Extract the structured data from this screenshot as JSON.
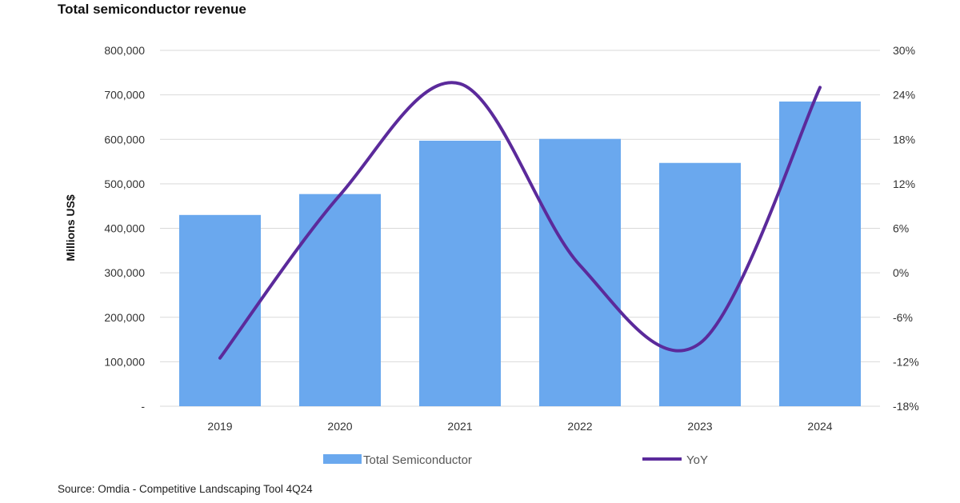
{
  "chart_data": {
    "type": "bar",
    "title": "Total semiconductor revenue",
    "categories": [
      "2019",
      "2020",
      "2021",
      "2022",
      "2023",
      "2024"
    ],
    "series": [
      {
        "name": "Total Semiconductor",
        "type": "bar",
        "axis": "left",
        "values": [
          430000,
          477000,
          597000,
          601000,
          547000,
          685000
        ]
      },
      {
        "name": "YoY",
        "type": "line",
        "axis": "right",
        "values": [
          -11.5,
          10.5,
          25.5,
          1.0,
          -9.5,
          25.0
        ]
      }
    ],
    "xlabel": "",
    "ylabel": "Millions US$",
    "ylim": [
      0,
      800000
    ],
    "y_ticks": [
      {
        "value": 0,
        "label": "-"
      },
      {
        "value": 100000,
        "label": "100,000"
      },
      {
        "value": 200000,
        "label": "200,000"
      },
      {
        "value": 300000,
        "label": "300,000"
      },
      {
        "value": 400000,
        "label": "400,000"
      },
      {
        "value": 500000,
        "label": "500,000"
      },
      {
        "value": 600000,
        "label": "600,000"
      },
      {
        "value": 700000,
        "label": "700,000"
      },
      {
        "value": 800000,
        "label": "800,000"
      }
    ],
    "y2lim": [
      -18,
      30
    ],
    "y2_ticks": [
      {
        "value": -18,
        "label": "-18%"
      },
      {
        "value": -12,
        "label": "-12%"
      },
      {
        "value": -6,
        "label": "-6%"
      },
      {
        "value": 0,
        "label": "0%"
      },
      {
        "value": 6,
        "label": "6%"
      },
      {
        "value": 12,
        "label": "12%"
      },
      {
        "value": 18,
        "label": "18%"
      },
      {
        "value": 24,
        "label": "24%"
      },
      {
        "value": 30,
        "label": "30%"
      }
    ],
    "grid": true,
    "legend": "bottom",
    "source": "Source: Omdia - Competitive Landscaping Tool 4Q24",
    "colors": {
      "bar": "#6aa8ee",
      "line": "#5b2a9b",
      "grid": "#d9d9d9"
    }
  }
}
